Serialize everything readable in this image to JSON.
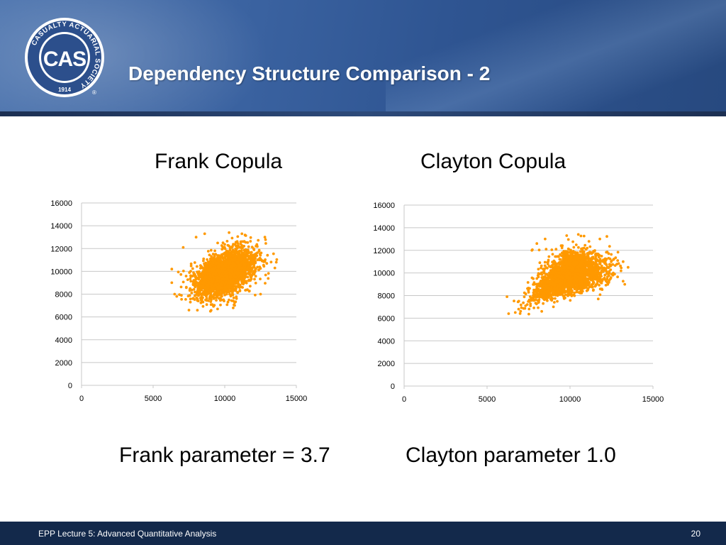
{
  "slide": {
    "title": "Dependency Structure Comparison - 2",
    "logo": {
      "letters": "CAS",
      "ring_text": "CASUALTY ACTUARIAL SOCIETY",
      "year": "1914",
      "mark": "®"
    },
    "footer": {
      "text": "EPP Lecture 5:  Advanced Quantitative Analysis",
      "page": "20"
    },
    "captions": {
      "frank": "Frank parameter = 3.7",
      "clayton": "Clayton parameter 1.0"
    }
  },
  "colors": {
    "points": "#ff9900",
    "gridline": "#c8c8c8",
    "header": "#3a62a0",
    "footer": "#13294b"
  },
  "chart_data": [
    {
      "type": "scatter",
      "title": "Frank Copula",
      "copula": "frank",
      "xlim": [
        0,
        15000
      ],
      "ylim": [
        0,
        16000
      ],
      "xticks": [
        0,
        5000,
        10000,
        15000
      ],
      "yticks": [
        0,
        2000,
        4000,
        6000,
        8000,
        10000,
        12000,
        14000,
        16000
      ],
      "grid": "horizontal",
      "marker_color": "#ff9900",
      "cloud": {
        "x_center": 10000,
        "y_center": 9800,
        "x_spread": 1050,
        "y_spread": 1050,
        "x_range": [
          6200,
          13800
        ],
        "y_range": [
          6400,
          13400
        ],
        "correlation": 0.45,
        "n_points": 2500
      },
      "points": [
        {
          "x": 6300,
          "y": 10200
        },
        {
          "x": 6300,
          "y": 9000
        },
        {
          "x": 6500,
          "y": 8000
        },
        {
          "x": 7500,
          "y": 6600
        },
        {
          "x": 9000,
          "y": 6500
        },
        {
          "x": 9500,
          "y": 6700
        },
        {
          "x": 8000,
          "y": 13000
        },
        {
          "x": 8600,
          "y": 13300
        },
        {
          "x": 10300,
          "y": 13400
        },
        {
          "x": 11200,
          "y": 13300
        },
        {
          "x": 12800,
          "y": 13000
        },
        {
          "x": 13500,
          "y": 10300
        },
        {
          "x": 13600,
          "y": 10800
        },
        {
          "x": 12500,
          "y": 8000
        },
        {
          "x": 7100,
          "y": 12100
        },
        {
          "x": 7600,
          "y": 7300
        }
      ]
    },
    {
      "type": "scatter",
      "title": "Clayton Copula",
      "copula": "clayton",
      "xlim": [
        0,
        15000
      ],
      "ylim": [
        0,
        16000
      ],
      "xticks": [
        0,
        5000,
        10000,
        15000
      ],
      "yticks": [
        0,
        2000,
        4000,
        6000,
        8000,
        10000,
        12000,
        14000,
        16000
      ],
      "grid": "horizontal",
      "marker_color": "#ff9900",
      "cloud": {
        "x_center": 10000,
        "y_center": 9800,
        "x_spread": 1050,
        "y_spread": 1050,
        "x_range": [
          6200,
          13800
        ],
        "y_range": [
          6300,
          13500
        ],
        "theta": 1.0,
        "n_points": 2500
      },
      "points": [
        {
          "x": 6200,
          "y": 7900
        },
        {
          "x": 6300,
          "y": 6400
        },
        {
          "x": 6700,
          "y": 6500
        },
        {
          "x": 6900,
          "y": 6800
        },
        {
          "x": 7700,
          "y": 12000
        },
        {
          "x": 8000,
          "y": 12600
        },
        {
          "x": 8500,
          "y": 13000
        },
        {
          "x": 9800,
          "y": 13300
        },
        {
          "x": 10500,
          "y": 13400
        },
        {
          "x": 11800,
          "y": 13000
        },
        {
          "x": 13200,
          "y": 11000
        },
        {
          "x": 13500,
          "y": 10500
        },
        {
          "x": 13300,
          "y": 9000
        },
        {
          "x": 11700,
          "y": 7700
        },
        {
          "x": 9000,
          "y": 7000
        }
      ]
    }
  ]
}
